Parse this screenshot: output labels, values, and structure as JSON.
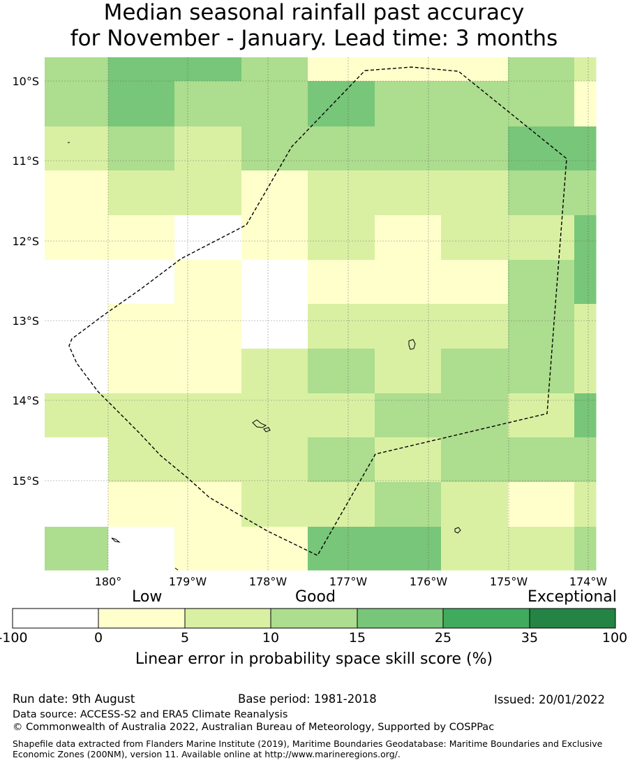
{
  "title": {
    "line1": "Median seasonal rainfall past accuracy",
    "line2": "for November - January. Lead time: 3 months"
  },
  "map": {
    "lat_labels": [
      "10°S",
      "11°S",
      "12°S",
      "13°S",
      "14°S",
      "15°S"
    ],
    "lon_labels": [
      "180°",
      "179°W",
      "178°W",
      "177°W",
      "176°W",
      "175°W",
      "174°W"
    ],
    "category_colors": {
      "0": "#ffffff",
      "1": "#ffffcc",
      "2": "#d9f0a3",
      "3": "#addd8e",
      "4": "#78c679",
      "5": "#41ab5d",
      "6": "#238443"
    },
    "grid_rows": [
      [
        3,
        4,
        4,
        3,
        1,
        1,
        1,
        3,
        2
      ],
      [
        3,
        4,
        3,
        3,
        4,
        3,
        3,
        3,
        1
      ],
      [
        2,
        3,
        2,
        3,
        3,
        3,
        3,
        4,
        4
      ],
      [
        1,
        2,
        2,
        1,
        2,
        2,
        2,
        3,
        3
      ],
      [
        1,
        1,
        0,
        1,
        2,
        1,
        2,
        2,
        4
      ],
      [
        0,
        0,
        1,
        0,
        1,
        1,
        1,
        3,
        4
      ],
      [
        0,
        1,
        1,
        0,
        2,
        2,
        2,
        3,
        2
      ],
      [
        0,
        1,
        1,
        2,
        3,
        2,
        3,
        3,
        2
      ],
      [
        2,
        2,
        2,
        2,
        2,
        3,
        3,
        2,
        4
      ],
      [
        0,
        2,
        2,
        2,
        3,
        2,
        3,
        3,
        3
      ],
      [
        0,
        1,
        1,
        2,
        2,
        3,
        2,
        1,
        2
      ],
      [
        3,
        0,
        1,
        1,
        4,
        4,
        2,
        2,
        3
      ]
    ]
  },
  "colorbar": {
    "level_labels": {
      "low": "Low",
      "good": "Good",
      "exceptional": "Exceptional"
    },
    "ticks": [
      "-100",
      "0",
      "5",
      "10",
      "15",
      "25",
      "35",
      "100"
    ],
    "colors": [
      "#ffffff",
      "#ffffcc",
      "#d9f0a3",
      "#addd8e",
      "#78c679",
      "#41ab5d",
      "#238443"
    ],
    "label": "Linear error in probability space skill score (%)"
  },
  "footer": {
    "run_date": "Run date: 9th August",
    "base_period": "Base period: 1981-2018",
    "issued": "Issued: 20/01/2022",
    "data_source": "Data source: ACCESS-S2 and ERA5 Climate Reanalysis",
    "copyright": "© Commonwealth of Australia 2022, Australian Bureau of Meteorology, Supported by COSPPac",
    "shapefile": "Shapefile data extracted from Flanders Marine Institute (2019), Maritime Boundaries Geodatabase: Maritime Boundaries and Exclusive Economic Zones (200NM), version 11. Available online at http://www.marineregions.org/."
  }
}
